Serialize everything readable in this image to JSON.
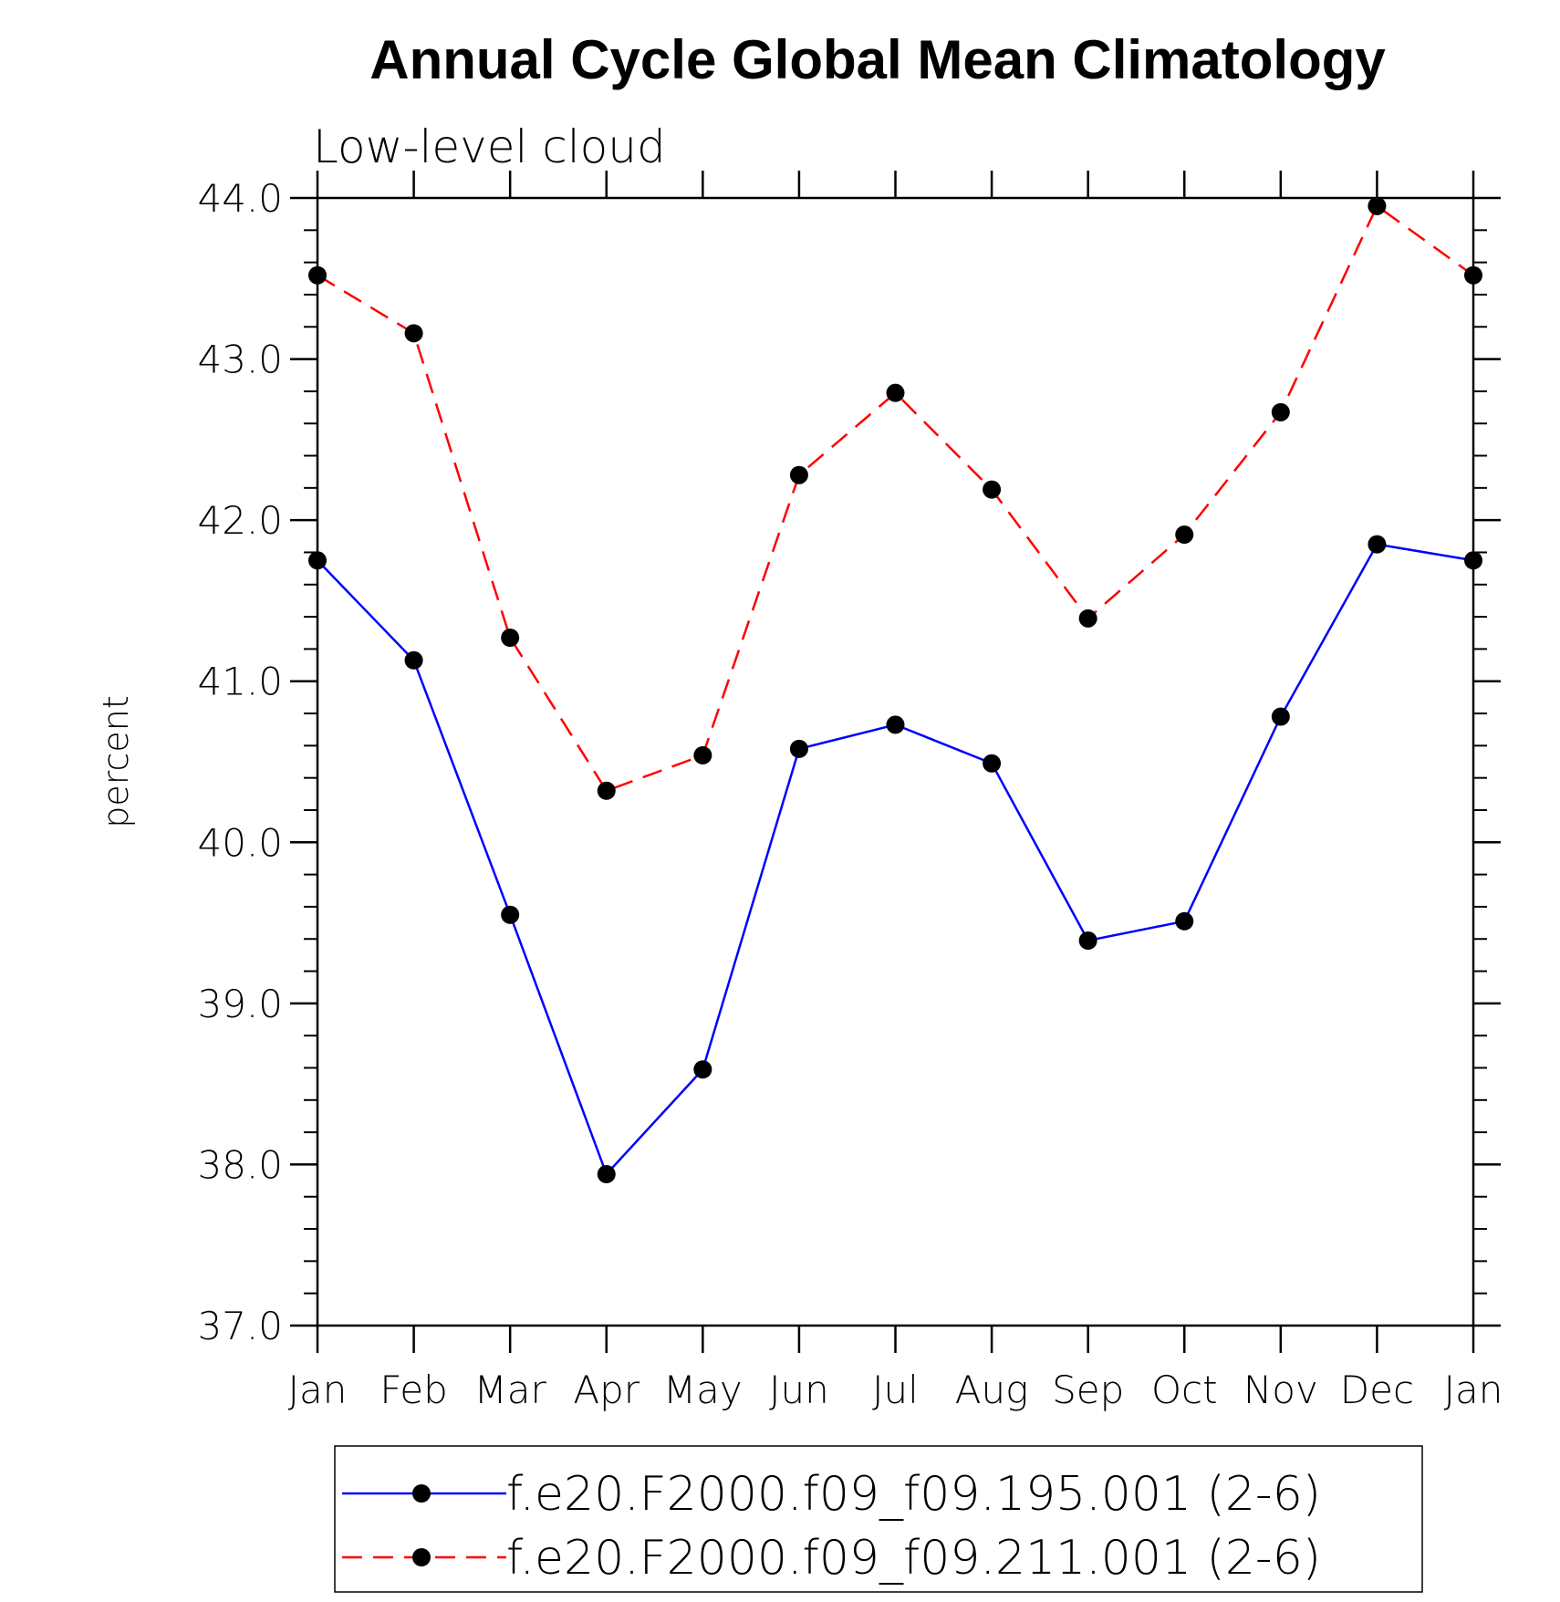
{
  "chart_data": {
    "type": "line",
    "title": "Annual Cycle Global Mean Climatology",
    "subtitle": "Low-level cloud",
    "xlabel": "",
    "ylabel": "percent",
    "categories": [
      "Jan",
      "Feb",
      "Mar",
      "Apr",
      "May",
      "Jun",
      "Jul",
      "Aug",
      "Sep",
      "Oct",
      "Nov",
      "Dec",
      "Jan"
    ],
    "ylim": [
      37.0,
      44.0
    ],
    "yticks": [
      "37.0",
      "38.0",
      "39.0",
      "40.0",
      "41.0",
      "42.0",
      "43.0",
      "44.0"
    ],
    "grid": false,
    "legend_position": "bottom",
    "series": [
      {
        "name": "f.e20.F2000.f09_f09.195.001 (2-6)",
        "color": "#0000ff",
        "line_style": "solid",
        "marker": "filled-circle",
        "values": [
          41.75,
          41.13,
          39.55,
          37.94,
          38.59,
          40.58,
          40.73,
          40.49,
          39.39,
          39.51,
          40.78,
          41.85,
          41.75
        ]
      },
      {
        "name": "f.e20.F2000.f09_f09.211.001 (2-6)",
        "color": "#ff0000",
        "line_style": "dashed",
        "marker": "filled-circle",
        "values": [
          43.52,
          43.16,
          41.27,
          40.32,
          40.54,
          42.28,
          42.79,
          42.19,
          41.39,
          41.91,
          42.67,
          43.95,
          43.52
        ]
      }
    ]
  }
}
